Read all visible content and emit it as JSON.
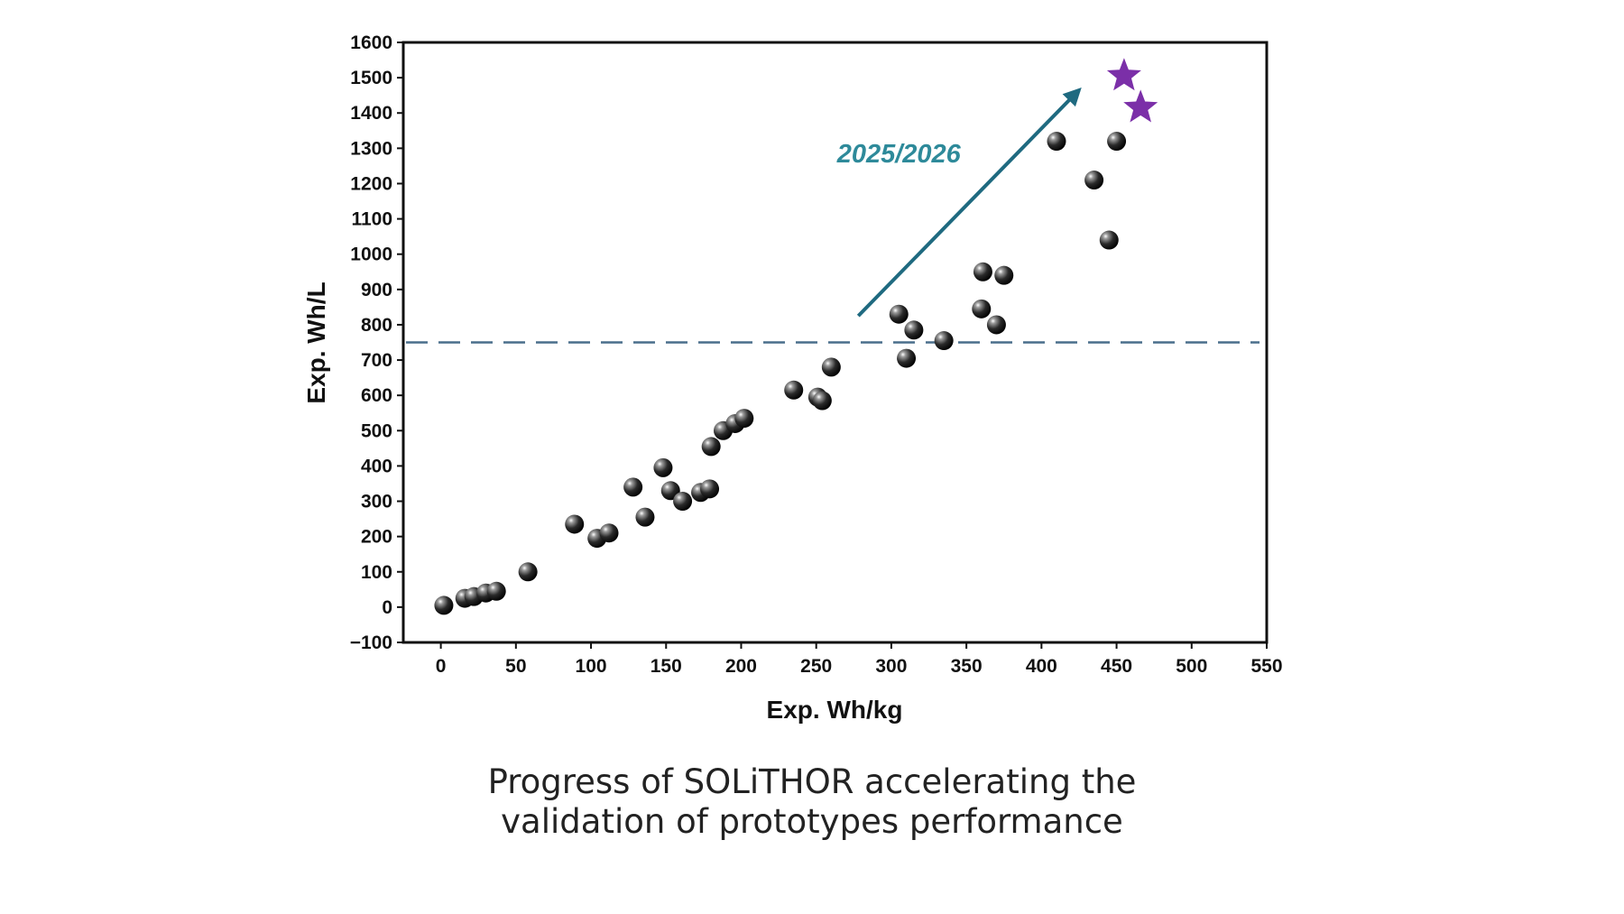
{
  "chart_data": {
    "type": "scatter",
    "xlabel": "Exp. Wh/kg",
    "ylabel": "Exp. Wh/L",
    "xlim": [
      -25,
      550
    ],
    "ylim": [
      -100,
      1600
    ],
    "xticks": [
      0,
      50,
      100,
      150,
      200,
      250,
      300,
      350,
      400,
      450,
      500,
      550
    ],
    "yticks": [
      -100,
      0,
      100,
      200,
      300,
      400,
      500,
      600,
      700,
      800,
      900,
      1000,
      1100,
      1200,
      1300,
      1400,
      1500,
      1600
    ],
    "xtick_labels": [
      "0",
      "50",
      "100",
      "150",
      "200",
      "250",
      "300",
      "350",
      "400",
      "450",
      "500",
      "550"
    ],
    "ytick_labels": [
      "−100",
      "0",
      "100",
      "200",
      "300",
      "400",
      "500",
      "600",
      "700",
      "800",
      "900",
      "1000",
      "1100",
      "1200",
      "1300",
      "1400",
      "1500",
      "1600"
    ],
    "grid": false,
    "series": [
      {
        "marker": "sphere",
        "color": "#111111",
        "points": [
          [
            2,
            5
          ],
          [
            16,
            25
          ],
          [
            22,
            30
          ],
          [
            30,
            40
          ],
          [
            37,
            45
          ],
          [
            58,
            100
          ],
          [
            89,
            235
          ],
          [
            104,
            195
          ],
          [
            112,
            210
          ],
          [
            128,
            340
          ],
          [
            136,
            255
          ],
          [
            148,
            395
          ],
          [
            153,
            330
          ],
          [
            161,
            300
          ],
          [
            173,
            325
          ],
          [
            179,
            335
          ],
          [
            180,
            455
          ],
          [
            188,
            500
          ],
          [
            196,
            520
          ],
          [
            202,
            535
          ],
          [
            235,
            615
          ],
          [
            251,
            595
          ],
          [
            254,
            585
          ],
          [
            260,
            680
          ],
          [
            305,
            830
          ],
          [
            310,
            705
          ],
          [
            315,
            785
          ],
          [
            335,
            755
          ],
          [
            360,
            845
          ],
          [
            361,
            950
          ],
          [
            370,
            800
          ],
          [
            375,
            940
          ],
          [
            410,
            1320
          ],
          [
            435,
            1210
          ],
          [
            445,
            1040
          ],
          [
            450,
            1320
          ]
        ]
      },
      {
        "marker": "star",
        "color": "#7b2fa8",
        "points": [
          [
            455,
            1505
          ],
          [
            466,
            1415
          ]
        ]
      }
    ],
    "reference_line": {
      "y": 750,
      "style": "dashed",
      "color": "#4a6f8c"
    },
    "annotations": [
      {
        "text": "2025/2026",
        "color": "#2e8a9a",
        "x": 305,
        "y": 1260
      }
    ],
    "arrow": {
      "from": [
        278,
        825
      ],
      "to": [
        425,
        1465
      ],
      "color": "#1f6a80"
    }
  },
  "caption": {
    "line1": "Progress of SOLiTHOR accelerating the",
    "line2": "validation of prototypes performance"
  }
}
